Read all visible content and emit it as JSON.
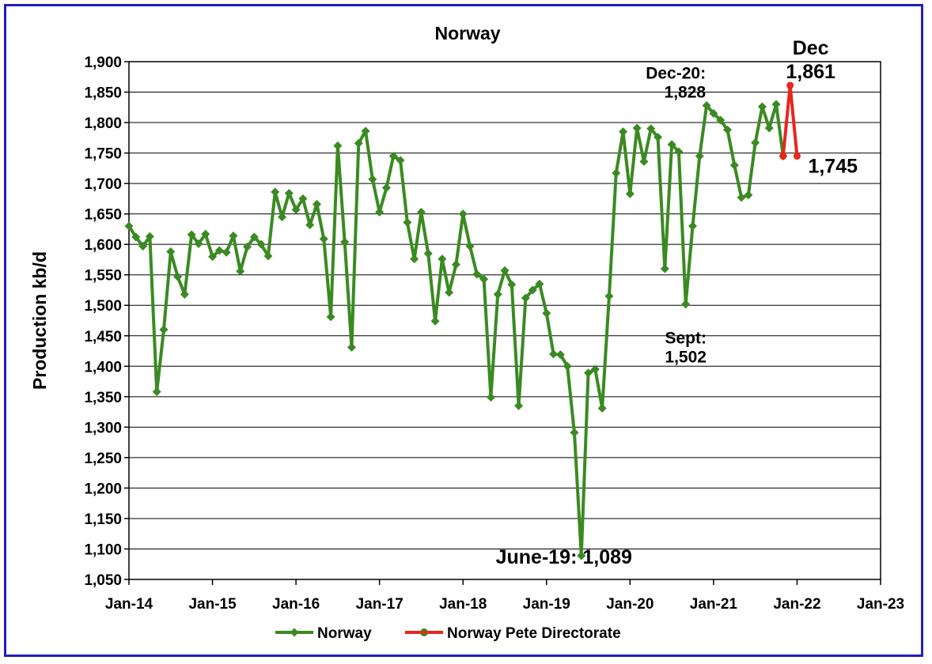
{
  "chart_data": {
    "type": "line",
    "title": "Norway",
    "xlabel": "",
    "ylabel": "Production kb/d",
    "ylim": [
      1050,
      1900
    ],
    "ytick_step": 50,
    "ytick_labels": [
      "1,050",
      "1,100",
      "1,150",
      "1,200",
      "1,250",
      "1,300",
      "1,350",
      "1,400",
      "1,450",
      "1,500",
      "1,550",
      "1,600",
      "1,650",
      "1,700",
      "1,750",
      "1,800",
      "1,850",
      "1,900"
    ],
    "x_tick_labels": [
      "Jan-14",
      "Jan-15",
      "Jan-16",
      "Jan-17",
      "Jan-18",
      "Jan-19",
      "Jan-20",
      "Jan-21",
      "Jan-22",
      "Jan-23"
    ],
    "x_start": "Jan-14",
    "x_end": "Jan-23",
    "grid": true,
    "legend_position": "bottom",
    "series": [
      {
        "name": "Norway",
        "color": "#3a8a22",
        "marker": "diamond",
        "start": "Jan-14",
        "values": [
          1630,
          1612,
          1597,
          1613,
          1358,
          1460,
          1588,
          1547,
          1518,
          1616,
          1601,
          1617,
          1580,
          1590,
          1587,
          1614,
          1556,
          1596,
          1612,
          1600,
          1581,
          1686,
          1645,
          1684,
          1657,
          1675,
          1632,
          1666,
          1609,
          1481,
          1762,
          1604,
          1431,
          1766,
          1786,
          1707,
          1653,
          1693,
          1745,
          1738,
          1636,
          1576,
          1653,
          1585,
          1474,
          1576,
          1521,
          1567,
          1650,
          1597,
          1551,
          1543,
          1349,
          1518,
          1557,
          1534,
          1335,
          1512,
          1525,
          1535,
          1487,
          1420,
          1419,
          1400,
          1291,
          1089,
          1389,
          1395,
          1331,
          1515,
          1717,
          1785,
          1683,
          1791,
          1736,
          1790,
          1776,
          1560,
          1764,
          1752,
          1502,
          1630,
          1745,
          1828,
          1815,
          1804,
          1788,
          1730,
          1677,
          1681,
          1767,
          1826,
          1791,
          1830,
          1745
        ]
      },
      {
        "name": "Norway Pete Directorate",
        "color": "#e8261e",
        "marker": "circle",
        "points": [
          {
            "x": "Nov-21",
            "y": 1745
          },
          {
            "x": "Dec-21",
            "y": 1861
          },
          {
            "x": "Jan-22",
            "y": 1745
          }
        ]
      }
    ],
    "annotations": [
      {
        "text_lines": [
          "Dec-20:",
          "1,828"
        ],
        "x": "Dec-20",
        "y": 1828
      },
      {
        "text_lines": [
          "Sept:",
          "1,502"
        ],
        "x": "Sep-20",
        "y": 1502
      },
      {
        "text_lines": [
          "June-19: 1,089"
        ],
        "x": "Jun-19",
        "y": 1089
      },
      {
        "text_lines": [
          "Dec",
          "1,861"
        ],
        "x": "Dec-21",
        "y": 1861
      },
      {
        "text_lines": [
          "1,745"
        ],
        "x": "Jan-22",
        "y": 1745
      }
    ]
  }
}
